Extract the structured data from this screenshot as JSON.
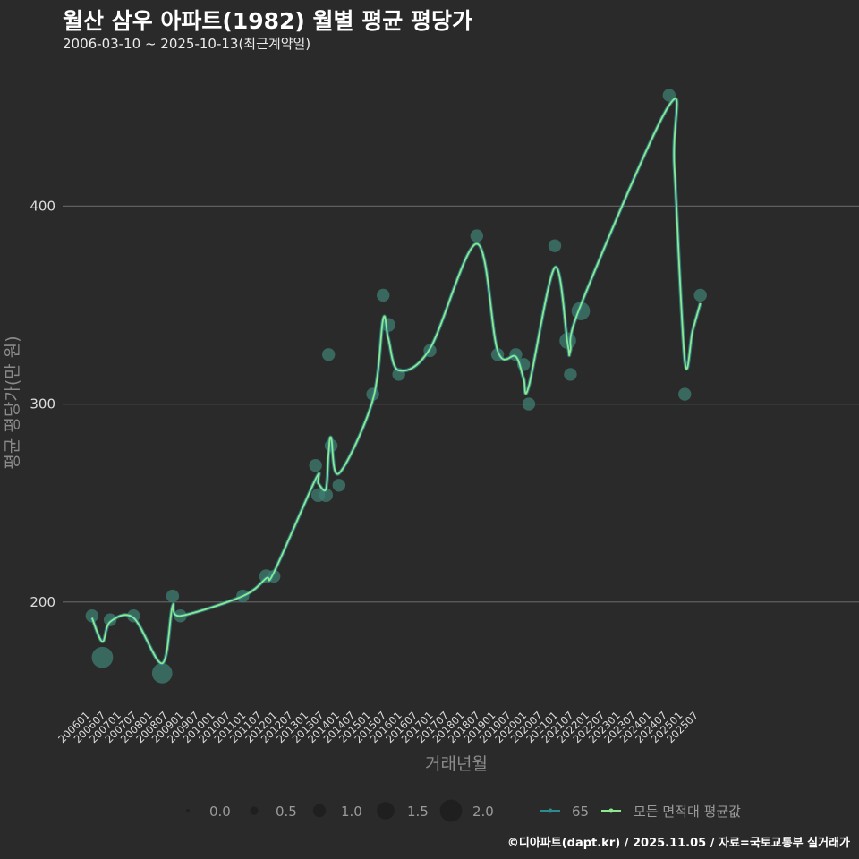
{
  "header": {
    "title": "월산 삼우 아파트(1982) 월별 평균 평당가",
    "subtitle": "2006-03-10 ~ 2025-10-13(최근계약일)"
  },
  "footer": {
    "credit": "©디아파트(dapt.kr) / 2025.11.05 / 자료=국토교통부 실거래가"
  },
  "colors": {
    "background": "#2b2a2b",
    "grid": "#5f5f5f",
    "series_65": "#2f8a8f",
    "series_all": "#8ee88e",
    "point_fill": "#3f7d72"
  },
  "chart_data": {
    "type": "scatter",
    "title": "월산 삼우 아파트(1982) 월별 평균 평당가",
    "xlabel": "거래년월",
    "ylabel": "평균 평당가(만 원)",
    "ylim": [
      147,
      468
    ],
    "yticks": [
      200,
      300,
      400
    ],
    "x_tick_labels": [
      "200601",
      "200607",
      "200701",
      "200707",
      "200801",
      "200807",
      "200901",
      "200907",
      "201001",
      "201007",
      "201101",
      "201107",
      "201201",
      "201207",
      "201301",
      "201307",
      "201401",
      "201407",
      "201501",
      "201507",
      "201601",
      "201607",
      "201701",
      "201707",
      "201801",
      "201807",
      "201901",
      "201907",
      "202001",
      "202007",
      "202101",
      "202107",
      "202201",
      "202207",
      "202301",
      "202307",
      "202401",
      "202407",
      "202501",
      "202507"
    ],
    "size_legend": {
      "title": "",
      "values": [
        "0.0",
        "0.5",
        "1.0",
        "1.5",
        "2.0"
      ]
    },
    "series": [
      {
        "name": "65",
        "kind": "points",
        "points": [
          {
            "x": "2006-03",
            "y": 193,
            "size": 1.0
          },
          {
            "x": "2006-07",
            "y": 172,
            "size": 1.9
          },
          {
            "x": "2006-10",
            "y": 191,
            "size": 1.0
          },
          {
            "x": "2007-07",
            "y": 193,
            "size": 1.0
          },
          {
            "x": "2008-06",
            "y": 164,
            "size": 1.8
          },
          {
            "x": "2008-10",
            "y": 203,
            "size": 1.0
          },
          {
            "x": "2009-01",
            "y": 193,
            "size": 1.0
          },
          {
            "x": "2011-01",
            "y": 203,
            "size": 1.0
          },
          {
            "x": "2011-10",
            "y": 213,
            "size": 1.1
          },
          {
            "x": "2012-01",
            "y": 213,
            "size": 1.0
          },
          {
            "x": "2013-05",
            "y": 269,
            "size": 1.0
          },
          {
            "x": "2013-06",
            "y": 254,
            "size": 1.1
          },
          {
            "x": "2013-09",
            "y": 254,
            "size": 1.1
          },
          {
            "x": "2013-10",
            "y": 325,
            "size": 1.0
          },
          {
            "x": "2013-11",
            "y": 279,
            "size": 1.0
          },
          {
            "x": "2014-02",
            "y": 259,
            "size": 1.0
          },
          {
            "x": "2015-03",
            "y": 305,
            "size": 1.0
          },
          {
            "x": "2015-07",
            "y": 355,
            "size": 1.0
          },
          {
            "x": "2015-09",
            "y": 340,
            "size": 1.1
          },
          {
            "x": "2016-01",
            "y": 315,
            "size": 1.0
          },
          {
            "x": "2017-01",
            "y": 327,
            "size": 1.0
          },
          {
            "x": "2018-07",
            "y": 385,
            "size": 1.0
          },
          {
            "x": "2019-03",
            "y": 325,
            "size": 1.0
          },
          {
            "x": "2019-10",
            "y": 325,
            "size": 1.0
          },
          {
            "x": "2020-01",
            "y": 320,
            "size": 1.0
          },
          {
            "x": "2020-03",
            "y": 300,
            "size": 1.0
          },
          {
            "x": "2021-01",
            "y": 380,
            "size": 1.0
          },
          {
            "x": "2021-06",
            "y": 332,
            "size": 1.4
          },
          {
            "x": "2021-07",
            "y": 315,
            "size": 1.0
          },
          {
            "x": "2021-11",
            "y": 347,
            "size": 1.6
          },
          {
            "x": "2024-09",
            "y": 456,
            "size": 1.0
          },
          {
            "x": "2025-03",
            "y": 305,
            "size": 1.0
          },
          {
            "x": "2025-09",
            "y": 355,
            "size": 1.0
          }
        ]
      },
      {
        "name": "모든 면적대 평균값",
        "kind": "line",
        "points": [
          {
            "x": "2006-03",
            "y": 192
          },
          {
            "x": "2006-07",
            "y": 180
          },
          {
            "x": "2006-10",
            "y": 190
          },
          {
            "x": "2007-07",
            "y": 192
          },
          {
            "x": "2008-06",
            "y": 169
          },
          {
            "x": "2008-10",
            "y": 198
          },
          {
            "x": "2009-01",
            "y": 193
          },
          {
            "x": "2011-01",
            "y": 203
          },
          {
            "x": "2011-10",
            "y": 212
          },
          {
            "x": "2012-01",
            "y": 215
          },
          {
            "x": "2013-05",
            "y": 262
          },
          {
            "x": "2013-06",
            "y": 260
          },
          {
            "x": "2013-09",
            "y": 257
          },
          {
            "x": "2013-10",
            "y": 275
          },
          {
            "x": "2013-11",
            "y": 283
          },
          {
            "x": "2014-02",
            "y": 265
          },
          {
            "x": "2015-03",
            "y": 302
          },
          {
            "x": "2015-07",
            "y": 343
          },
          {
            "x": "2015-09",
            "y": 333
          },
          {
            "x": "2016-01",
            "y": 317
          },
          {
            "x": "2017-01",
            "y": 328
          },
          {
            "x": "2018-07",
            "y": 381
          },
          {
            "x": "2019-03",
            "y": 327
          },
          {
            "x": "2019-10",
            "y": 324
          },
          {
            "x": "2020-01",
            "y": 313
          },
          {
            "x": "2020-03",
            "y": 309
          },
          {
            "x": "2021-01",
            "y": 369
          },
          {
            "x": "2021-06",
            "y": 330
          },
          {
            "x": "2021-07",
            "y": 327
          },
          {
            "x": "2021-11",
            "y": 350
          },
          {
            "x": "2024-09",
            "y": 451
          },
          {
            "x": "2024-11",
            "y": 420
          },
          {
            "x": "2025-03",
            "y": 322
          },
          {
            "x": "2025-06",
            "y": 337
          },
          {
            "x": "2025-09",
            "y": 351
          }
        ]
      }
    ]
  }
}
